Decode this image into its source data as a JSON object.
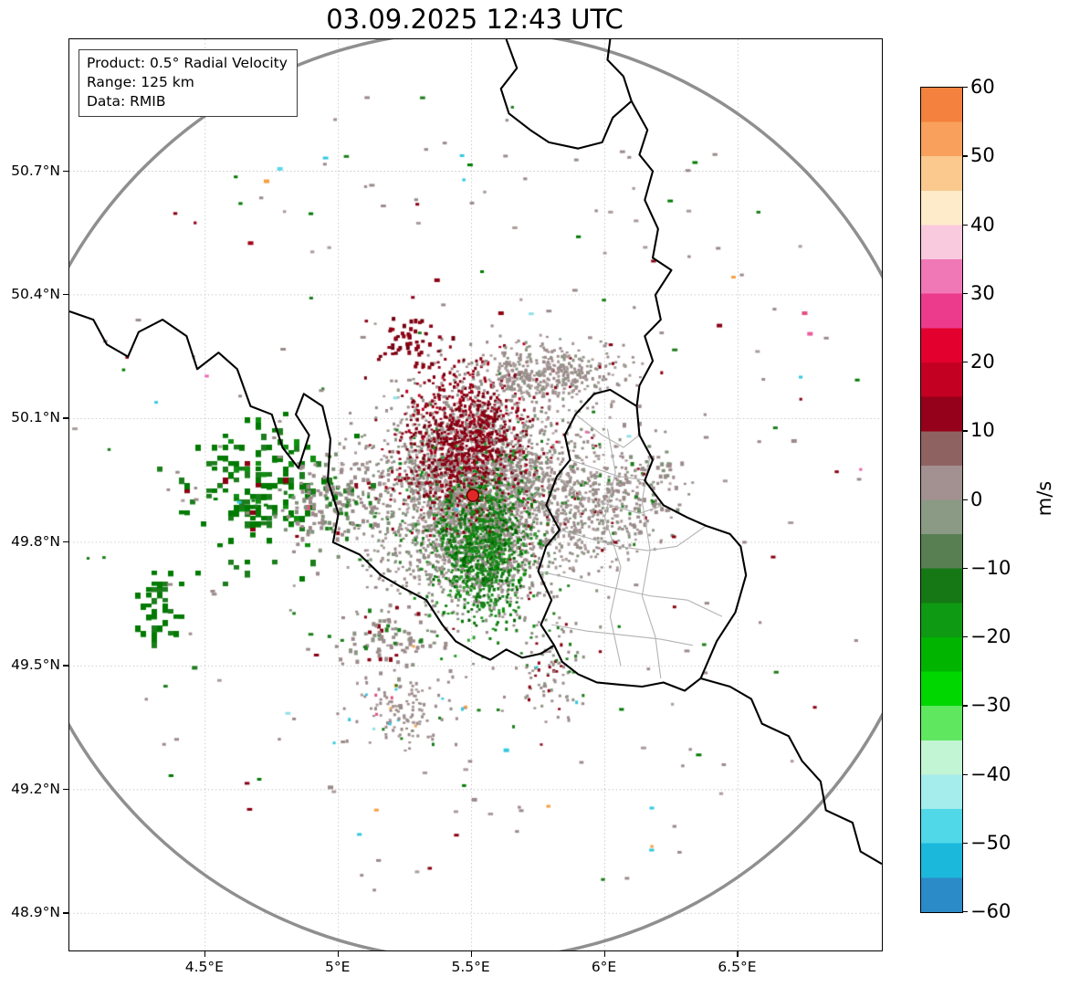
{
  "title": "03.09.2025 12:43 UTC",
  "info_box": {
    "line1": "Product: 0.5° Radial Velocity",
    "line2": "Range: 125 km",
    "line3": "Data: RMIB"
  },
  "axes": {
    "x_ticks": [
      {
        "lon": 4.5,
        "label": "4.5°E"
      },
      {
        "lon": 5.0,
        "label": "5°E"
      },
      {
        "lon": 5.5,
        "label": "5.5°E"
      },
      {
        "lon": 6.0,
        "label": "6°E"
      },
      {
        "lon": 6.5,
        "label": "6.5°E"
      }
    ],
    "y_ticks": [
      {
        "lat": 50.7,
        "label": "50.7°N"
      },
      {
        "lat": 50.4,
        "label": "50.4°N"
      },
      {
        "lat": 50.1,
        "label": "50.1°N"
      },
      {
        "lat": 49.8,
        "label": "49.8°N"
      },
      {
        "lat": 49.5,
        "label": "49.5°N"
      },
      {
        "lat": 49.2,
        "label": "49.2°N"
      },
      {
        "lat": 48.9,
        "label": "48.9°N"
      }
    ]
  },
  "colorbar": {
    "unit": "m/s",
    "vmin": -60,
    "vmax": 60,
    "ticks": [
      {
        "v": 60,
        "label": "60"
      },
      {
        "v": 50,
        "label": "50"
      },
      {
        "v": 40,
        "label": "40"
      },
      {
        "v": 30,
        "label": "30"
      },
      {
        "v": 20,
        "label": "20"
      },
      {
        "v": 10,
        "label": "10"
      },
      {
        "v": 0,
        "label": "0"
      },
      {
        "v": -10,
        "label": "−10"
      },
      {
        "v": -20,
        "label": "−20"
      },
      {
        "v": -30,
        "label": "−30"
      },
      {
        "v": -40,
        "label": "−40"
      },
      {
        "v": -50,
        "label": "−50"
      },
      {
        "v": -60,
        "label": "−60"
      }
    ],
    "band_colors": [
      "#f4813e",
      "#f9a05c",
      "#fbc98e",
      "#fdebc9",
      "#f9c9dd",
      "#f078b6",
      "#ec3a8c",
      "#e4002e",
      "#c40022",
      "#95001a",
      "#8f6262",
      "#a39090",
      "#8a9a84",
      "#587f52",
      "#157815",
      "#0e9a12",
      "#00b400",
      "#00d600",
      "#5fe85f",
      "#c2f5d4",
      "#a5ecec",
      "#50d8e8",
      "#1cb8dc",
      "#2b8ac8"
    ]
  },
  "chart_data": {
    "type": "radar_velocity_map",
    "extent": {
      "lon_min": 3.99,
      "lon_max": 7.04,
      "lat_min": 48.81,
      "lat_max": 51.02
    },
    "radar_site": {
      "lon": 5.5046,
      "lat": 49.9135
    },
    "range_km": 125,
    "range_ring_color": "#8f8f8f",
    "grid_color": "#c9c9c9",
    "border_color": "#000000",
    "canton_color": "#b3b3b3",
    "radar_marker": {
      "fill": "#e02828",
      "edge": "#600000",
      "radius": 6.5
    },
    "borders": [
      [
        [
          5.63,
          51.02
        ],
        [
          5.67,
          50.95
        ],
        [
          5.61,
          50.9
        ],
        [
          5.64,
          50.84
        ],
        [
          5.72,
          50.8
        ],
        [
          5.79,
          50.77
        ],
        [
          5.9,
          50.755
        ],
        [
          5.99,
          50.77
        ],
        [
          6.03,
          50.83
        ],
        [
          6.1,
          50.87
        ],
        [
          6.07,
          50.93
        ],
        [
          6.01,
          50.97
        ],
        [
          6.02,
          51.02
        ]
      ],
      [
        [
          6.1,
          50.87
        ],
        [
          6.16,
          50.8
        ],
        [
          6.13,
          50.74
        ],
        [
          6.18,
          50.7
        ],
        [
          6.15,
          50.63
        ],
        [
          6.2,
          50.56
        ],
        [
          6.18,
          50.49
        ],
        [
          6.25,
          50.46
        ],
        [
          6.19,
          50.4
        ],
        [
          6.21,
          50.34
        ],
        [
          6.15,
          50.3
        ],
        [
          6.18,
          50.24
        ],
        [
          6.13,
          50.18
        ],
        [
          6.12,
          50.13
        ],
        [
          6.13,
          50.06
        ],
        [
          6.18,
          50.0
        ],
        [
          6.15,
          49.95
        ],
        [
          6.22,
          49.89
        ],
        [
          6.31,
          49.86
        ],
        [
          6.38,
          49.84
        ],
        [
          6.47,
          49.82
        ],
        [
          6.51,
          49.79
        ],
        [
          6.53,
          49.72
        ],
        [
          6.49,
          49.63
        ],
        [
          6.42,
          49.56
        ],
        [
          6.36,
          49.47
        ],
        [
          6.47,
          49.45
        ],
        [
          6.55,
          49.42
        ],
        [
          6.59,
          49.36
        ],
        [
          6.69,
          49.33
        ],
        [
          6.74,
          49.27
        ],
        [
          6.81,
          49.22
        ],
        [
          6.83,
          49.15
        ],
        [
          6.93,
          49.12
        ],
        [
          6.96,
          49.05
        ],
        [
          7.04,
          49.02
        ]
      ],
      [
        [
          6.12,
          50.13
        ],
        [
          6.02,
          50.17
        ],
        [
          5.96,
          50.16
        ],
        [
          5.89,
          50.11
        ],
        [
          5.85,
          50.06
        ],
        [
          5.87,
          50.0
        ],
        [
          5.82,
          49.96
        ],
        [
          5.78,
          49.89
        ],
        [
          5.83,
          49.83
        ],
        [
          5.78,
          49.79
        ],
        [
          5.75,
          49.73
        ],
        [
          5.8,
          49.66
        ],
        [
          5.76,
          49.6
        ],
        [
          5.81,
          49.55
        ],
        [
          5.84,
          49.51
        ],
        [
          5.9,
          49.48
        ],
        [
          5.97,
          49.46
        ],
        [
          6.05,
          49.455
        ],
        [
          6.14,
          49.45
        ],
        [
          6.22,
          49.46
        ],
        [
          6.3,
          49.44
        ],
        [
          6.36,
          49.47
        ]
      ],
      [
        [
          3.99,
          50.36
        ],
        [
          4.08,
          50.34
        ],
        [
          4.13,
          50.28
        ],
        [
          4.21,
          50.25
        ],
        [
          4.25,
          50.31
        ],
        [
          4.34,
          50.34
        ],
        [
          4.43,
          50.3
        ],
        [
          4.47,
          50.22
        ],
        [
          4.55,
          50.26
        ],
        [
          4.62,
          50.22
        ],
        [
          4.67,
          50.13
        ],
        [
          4.75,
          50.11
        ],
        [
          4.79,
          50.03
        ],
        [
          4.85,
          49.98
        ],
        [
          4.89,
          50.06
        ],
        [
          4.84,
          50.11
        ],
        [
          4.87,
          50.16
        ],
        [
          4.94,
          50.13
        ],
        [
          4.97,
          50.05
        ],
        [
          4.96,
          49.95
        ],
        [
          5.0,
          49.87
        ],
        [
          4.98,
          49.8
        ],
        [
          5.08,
          49.77
        ],
        [
          5.16,
          49.72
        ],
        [
          5.24,
          49.69
        ],
        [
          5.33,
          49.66
        ],
        [
          5.39,
          49.6
        ],
        [
          5.44,
          49.56
        ],
        [
          5.52,
          49.53
        ],
        [
          5.57,
          49.515
        ],
        [
          5.63,
          49.54
        ],
        [
          5.69,
          49.52
        ],
        [
          5.76,
          49.53
        ],
        [
          5.81,
          49.55
        ]
      ]
    ],
    "canton_borders": [
      [
        [
          5.89,
          50.11
        ],
        [
          5.99,
          50.06
        ],
        [
          6.07,
          50.03
        ],
        [
          6.13,
          50.06
        ]
      ],
      [
        [
          5.87,
          50.0
        ],
        [
          5.96,
          49.98
        ],
        [
          6.05,
          49.96
        ],
        [
          6.16,
          49.95
        ]
      ],
      [
        [
          5.82,
          49.96
        ],
        [
          5.92,
          49.91
        ],
        [
          6.02,
          49.89
        ],
        [
          6.13,
          49.87
        ],
        [
          6.22,
          49.89
        ]
      ],
      [
        [
          5.83,
          49.83
        ],
        [
          5.94,
          49.81
        ],
        [
          6.05,
          49.79
        ],
        [
          6.16,
          49.78
        ],
        [
          6.27,
          49.79
        ],
        [
          6.38,
          49.84
        ]
      ],
      [
        [
          5.75,
          49.73
        ],
        [
          5.89,
          49.71
        ],
        [
          6.03,
          49.69
        ],
        [
          6.17,
          49.67
        ],
        [
          6.31,
          49.66
        ],
        [
          6.44,
          49.62
        ]
      ],
      [
        [
          5.8,
          49.6
        ],
        [
          5.93,
          49.585
        ],
        [
          6.07,
          49.575
        ],
        [
          6.21,
          49.565
        ],
        [
          6.33,
          49.55
        ]
      ],
      [
        [
          6.01,
          50.075
        ],
        [
          6.04,
          49.97
        ],
        [
          6.0,
          49.86
        ],
        [
          6.06,
          49.74
        ],
        [
          6.02,
          49.62
        ],
        [
          6.06,
          49.5
        ]
      ],
      [
        [
          6.17,
          50.01
        ],
        [
          6.14,
          49.9
        ],
        [
          6.17,
          49.78
        ],
        [
          6.14,
          49.67
        ],
        [
          6.19,
          49.57
        ],
        [
          6.21,
          49.47
        ]
      ]
    ],
    "echo_clusters": [
      {
        "name": "central-mixed",
        "lon": 5.51,
        "lat": 49.905,
        "sx": 0.19,
        "sy": 0.12,
        "n": 3000,
        "size": 3,
        "palette": [
          [
            "#9c8a8a",
            5
          ],
          [
            "#8d9383",
            2.5
          ],
          [
            "#7f9078",
            2
          ],
          [
            "#ab9b9b",
            2
          ],
          [
            "#b7a8a8",
            1
          ],
          [
            "#8a0013",
            0.4
          ],
          [
            "#1c7d1c",
            0.4
          ]
        ]
      },
      {
        "name": "inbound-red-lobe",
        "lon": 5.475,
        "lat": 50.045,
        "sx": 0.115,
        "sy": 0.085,
        "n": 1000,
        "size": 3,
        "palette": [
          [
            "#8a0013",
            5
          ],
          [
            "#a30017",
            2
          ],
          [
            "#700010",
            2
          ],
          [
            "#9c8a8a",
            1.2
          ],
          [
            "#c00020",
            0.5
          ]
        ]
      },
      {
        "name": "outbound-green-lobe",
        "lon": 5.532,
        "lat": 49.784,
        "sx": 0.095,
        "sy": 0.085,
        "n": 1000,
        "size": 3,
        "palette": [
          [
            "#1c7d1c",
            4
          ],
          [
            "#0f8f0f",
            2
          ],
          [
            "#017a01",
            2
          ],
          [
            "#9c8a8a",
            1
          ],
          [
            "#2ba02b",
            1
          ],
          [
            "#005f00",
            1
          ]
        ]
      },
      {
        "name": "northeast-gray",
        "lon": 5.77,
        "lat": 50.21,
        "sx": 0.14,
        "sy": 0.035,
        "n": 420,
        "size": 3,
        "palette": [
          [
            "#9c8a8a",
            4
          ],
          [
            "#8d9383",
            2
          ],
          [
            "#ab9b9b",
            2
          ],
          [
            "#8a0013",
            0.3
          ]
        ]
      },
      {
        "name": "east-gray",
        "lon": 5.95,
        "lat": 49.9,
        "sx": 0.13,
        "sy": 0.08,
        "n": 420,
        "size": 3,
        "palette": [
          [
            "#9c8a8a",
            4
          ],
          [
            "#8d9383",
            2
          ],
          [
            "#ab9b9b",
            1.5
          ],
          [
            "#1c7d1c",
            0.4
          ],
          [
            "#8a0013",
            0.3
          ]
        ]
      },
      {
        "name": "west-green-blocks",
        "lon": 4.71,
        "lat": 49.93,
        "sx": 0.13,
        "sy": 0.075,
        "n": 170,
        "size": 6,
        "snap": true,
        "palette": [
          [
            "#017a01",
            5
          ],
          [
            "#1c7d1c",
            3
          ],
          [
            "#0f8f0f",
            1
          ],
          [
            "#8a0013",
            0.3
          ],
          [
            "#e05080",
            0.12
          ]
        ]
      },
      {
        "name": "west-gray",
        "lon": 4.99,
        "lat": 49.9,
        "sx": 0.1,
        "sy": 0.06,
        "n": 160,
        "size": 4,
        "palette": [
          [
            "#9c8a8a",
            4
          ],
          [
            "#7f9078",
            2
          ],
          [
            "#1c7d1c",
            1
          ],
          [
            "#8a0013",
            0.3
          ]
        ]
      },
      {
        "name": "southwest-green-specks",
        "lon": 4.31,
        "lat": 49.64,
        "sx": 0.045,
        "sy": 0.05,
        "n": 42,
        "size": 6,
        "snap": true,
        "palette": [
          [
            "#017a01",
            5
          ],
          [
            "#1c7d1c",
            2
          ]
        ]
      },
      {
        "name": "south-gray-row",
        "lon": 5.19,
        "lat": 49.565,
        "sx": 0.11,
        "sy": 0.04,
        "n": 85,
        "size": 4,
        "palette": [
          [
            "#9c8a8a",
            4
          ],
          [
            "#1c7d1c",
            1
          ],
          [
            "#8a0013",
            0.6
          ],
          [
            "#8d9383",
            1.5
          ]
        ]
      },
      {
        "name": "south-cluster",
        "lon": 5.24,
        "lat": 49.395,
        "sx": 0.09,
        "sy": 0.04,
        "n": 135,
        "size": 3,
        "palette": [
          [
            "#9c8a8a",
            5
          ],
          [
            "#ab9b9b",
            2
          ],
          [
            "#f4a040",
            0.35
          ],
          [
            "#30c8e0",
            0.35
          ],
          [
            "#e05080",
            0.25
          ],
          [
            "#1c7d1c",
            0.5
          ]
        ]
      },
      {
        "name": "south-southeast-specks",
        "lon": 5.795,
        "lat": 49.49,
        "sx": 0.065,
        "sy": 0.07,
        "n": 95,
        "size": 3,
        "palette": [
          [
            "#9c8a8a",
            3
          ],
          [
            "#1c7d1c",
            1.5
          ],
          [
            "#8a0013",
            1
          ],
          [
            "#30c8e0",
            0.3
          ],
          [
            "#8d9383",
            1.5
          ]
        ]
      },
      {
        "name": "north-red-specks",
        "lon": 5.26,
        "lat": 50.285,
        "sx": 0.06,
        "sy": 0.04,
        "n": 52,
        "size": 4,
        "palette": [
          [
            "#8a0013",
            5
          ],
          [
            "#700010",
            2
          ],
          [
            "#1c7d1c",
            0.4
          ]
        ]
      },
      {
        "name": "east-lux-specks",
        "lon": 6.16,
        "lat": 49.945,
        "sx": 0.06,
        "sy": 0.06,
        "n": 50,
        "size": 4,
        "palette": [
          [
            "#9c8a8a",
            4
          ],
          [
            "#7f9078",
            1.5
          ],
          [
            "#1c7d1c",
            0.5
          ]
        ]
      }
    ],
    "scatter_noise": {
      "n": 230,
      "size": 3,
      "rx": 1.55,
      "ry": 1.02,
      "palette": [
        [
          "#9c8a8a",
          4
        ],
        [
          "#8a0013",
          1.4
        ],
        [
          "#1c7d1c",
          1.2
        ],
        [
          "#017a01",
          0.8
        ],
        [
          "#30c8e0",
          0.5
        ],
        [
          "#f4a040",
          0.3
        ],
        [
          "#e86ab0",
          0.3
        ],
        [
          "#90e0e8",
          0.3
        ],
        [
          "#ab9b9b",
          1.5
        ]
      ]
    },
    "specks": [
      {
        "lon": 4.54,
        "lat": 50.85,
        "color": "#30c8e0"
      },
      {
        "lon": 4.77,
        "lat": 50.71,
        "color": "#5fd8e8"
      },
      {
        "lon": 4.72,
        "lat": 50.68,
        "color": "#f4a040"
      },
      {
        "lon": 4.66,
        "lat": 50.53,
        "color": "#a00016"
      },
      {
        "lon": 5.36,
        "lat": 50.44,
        "color": "#8a0013"
      },
      {
        "lon": 5.6,
        "lat": 50.36,
        "color": "#8a0013"
      },
      {
        "lon": 6.42,
        "lat": 50.33,
        "color": "#8a0013"
      },
      {
        "lon": 6.76,
        "lat": 50.31,
        "color": "#ec5a9c"
      },
      {
        "lon": 6.74,
        "lat": 50.36,
        "color": "#e05080"
      },
      {
        "lon": 6.7,
        "lat": 50.05,
        "color": "#9c8a8a"
      },
      {
        "lon": 6.23,
        "lat": 49.99,
        "color": "#9c8a8a"
      },
      {
        "lon": 4.45,
        "lat": 49.5,
        "color": "#1c7d1c"
      },
      {
        "lon": 5.62,
        "lat": 49.3,
        "color": "#30c8e0"
      },
      {
        "lon": 4.96,
        "lat": 49.21,
        "color": "#9c8a8a"
      },
      {
        "lon": 5.5,
        "lat": 49.18,
        "color": "#9c8a8a"
      }
    ]
  }
}
